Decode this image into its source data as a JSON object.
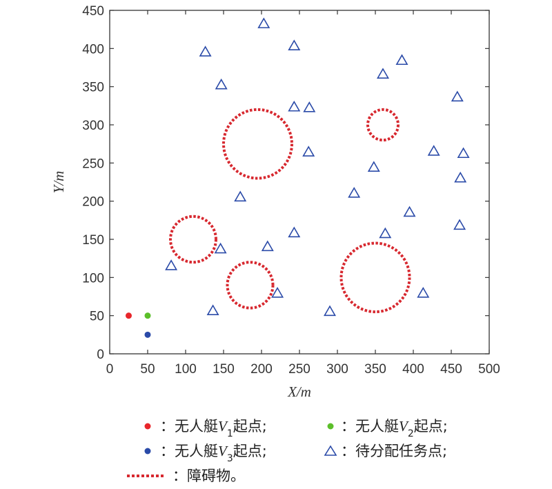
{
  "chart_data": {
    "type": "scatter",
    "xlabel": "X/m",
    "ylabel": "Y/m",
    "xlim": [
      0,
      500
    ],
    "ylim": [
      0,
      450
    ],
    "xticks": [
      0,
      50,
      100,
      150,
      200,
      250,
      300,
      350,
      400,
      450,
      500
    ],
    "yticks": [
      0,
      50,
      100,
      150,
      200,
      250,
      300,
      350,
      400,
      450
    ],
    "grid": false,
    "start_points": [
      {
        "name": "V1",
        "x": 25,
        "y": 50,
        "color": "#e8262b"
      },
      {
        "name": "V2",
        "x": 50,
        "y": 50,
        "color": "#5cbf2a"
      },
      {
        "name": "V3",
        "x": 50,
        "y": 25,
        "color": "#2a4aa8"
      }
    ],
    "task_points": [
      [
        203,
        432
      ],
      [
        126,
        395
      ],
      [
        243,
        403
      ],
      [
        147,
        352
      ],
      [
        385,
        384
      ],
      [
        360,
        366
      ],
      [
        458,
        336
      ],
      [
        243,
        323
      ],
      [
        263,
        322
      ],
      [
        262,
        264
      ],
      [
        427,
        265
      ],
      [
        466,
        262
      ],
      [
        348,
        244
      ],
      [
        462,
        230
      ],
      [
        322,
        210
      ],
      [
        172,
        205
      ],
      [
        395,
        185
      ],
      [
        461,
        168
      ],
      [
        243,
        158
      ],
      [
        363,
        157
      ],
      [
        208,
        140
      ],
      [
        146,
        137
      ],
      [
        81,
        115
      ],
      [
        221,
        79
      ],
      [
        413,
        79
      ],
      [
        136,
        56
      ],
      [
        290,
        55
      ]
    ],
    "task_color": "#2a4aa8",
    "obstacles": [
      {
        "cx": 195,
        "cy": 275,
        "r": 45
      },
      {
        "cx": 360,
        "cy": 300,
        "r": 20
      },
      {
        "cx": 110,
        "cy": 150,
        "r": 30
      },
      {
        "cx": 185,
        "cy": 90,
        "r": 30
      },
      {
        "cx": 350,
        "cy": 100,
        "r": 45
      }
    ],
    "obstacle_color": "#d7282f"
  },
  "legend": {
    "v1_prefix": "：无人艇",
    "v1_var": "V",
    "v1_sub": "1",
    "v1_suffix": "起点;",
    "v2_prefix": "：无人艇",
    "v2_var": "V",
    "v2_sub": "2",
    "v2_suffix": "起点;",
    "v3_prefix": "：无人艇",
    "v3_var": "V",
    "v3_sub": "3",
    "v3_suffix": "起点;",
    "task_label": "：待分配任务点;",
    "obstacle_label": "：障碍物。"
  }
}
